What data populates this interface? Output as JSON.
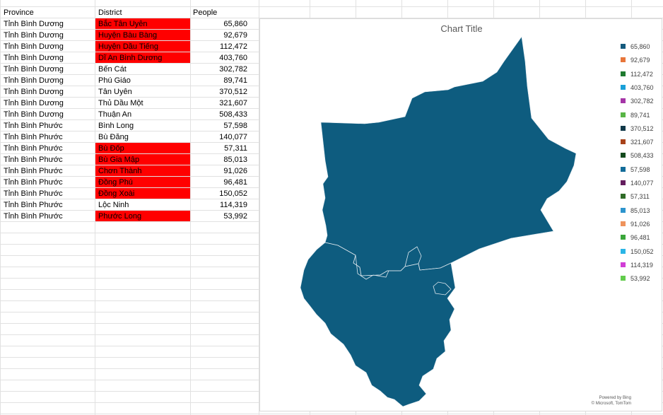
{
  "sheet": {
    "headers": {
      "province": "Province",
      "district": "District",
      "people": "People"
    },
    "rows": [
      {
        "province": "Tỉnh Bình Dương",
        "district": "Bắc Tân Uyên",
        "people": "65,860",
        "highlight": true
      },
      {
        "province": "Tỉnh Bình Dương",
        "district": "Huyện Bàu Bàng",
        "people": "92,679",
        "highlight": true
      },
      {
        "province": "Tỉnh Bình Dương",
        "district": "Huyện Dầu Tiếng",
        "people": "112,472",
        "highlight": true
      },
      {
        "province": "Tỉnh Bình Dương",
        "district": "Dĩ An Bình Dương",
        "people": "403,760",
        "highlight": true
      },
      {
        "province": "Tỉnh Bình Dương",
        "district": "Bến Cát",
        "people": "302,782",
        "highlight": false
      },
      {
        "province": "Tỉnh Bình Dương",
        "district": "Phú Giáo",
        "people": "89,741",
        "highlight": false
      },
      {
        "province": "Tỉnh Bình Dương",
        "district": "Tân Uyên",
        "people": "370,512",
        "highlight": false
      },
      {
        "province": "Tỉnh Bình Dương",
        "district": "Thủ Dầu Một",
        "people": "321,607",
        "highlight": false
      },
      {
        "province": "Tỉnh Bình Dương",
        "district": "Thuận An",
        "people": "508,433",
        "highlight": false
      },
      {
        "province": "Tỉnh Bình Phước",
        "district": "Bình Long",
        "people": "57,598",
        "highlight": false
      },
      {
        "province": "Tỉnh Bình Phước",
        "district": "Bù Đăng",
        "people": "140,077",
        "highlight": false
      },
      {
        "province": "Tỉnh Bình Phước",
        "district": "Bù Đốp",
        "people": "57,311",
        "highlight": true
      },
      {
        "province": "Tỉnh Bình Phước",
        "district": "Bù Gia Mập",
        "people": "85,013",
        "highlight": true
      },
      {
        "province": "Tỉnh Bình Phước",
        "district": "Chơn Thành",
        "people": "91,026",
        "highlight": true
      },
      {
        "province": "Tỉnh Bình Phước",
        "district": "Đồng Phú",
        "people": "96,481",
        "highlight": true
      },
      {
        "province": "Tỉnh Bình Phước",
        "district": "Đồng Xoài",
        "people": "150,052",
        "highlight": true
      },
      {
        "province": "Tỉnh Bình Phước",
        "district": "Lộc Ninh",
        "people": "114,319",
        "highlight": false
      },
      {
        "province": "Tỉnh Bình Phước",
        "district": "Phước Long",
        "people": "53,992",
        "highlight": true
      }
    ],
    "highlight_color": "#ff0000"
  },
  "chart": {
    "title": "Chart Title",
    "fill_color": "#0e5c7f",
    "border_color": "#dfe8ee",
    "legend": [
      {
        "label": "65,860",
        "color": "#155a7d"
      },
      {
        "label": "92,679",
        "color": "#e8763a"
      },
      {
        "label": "112,472",
        "color": "#1e7a2f"
      },
      {
        "label": "403,760",
        "color": "#1aa0d8"
      },
      {
        "label": "302,782",
        "color": "#a535a7"
      },
      {
        "label": "89,741",
        "color": "#58b545"
      },
      {
        "label": "370,512",
        "color": "#103848"
      },
      {
        "label": "321,607",
        "color": "#a8421a"
      },
      {
        "label": "508,433",
        "color": "#134a1d"
      },
      {
        "label": "57,598",
        "color": "#136c99"
      },
      {
        "label": "140,077",
        "color": "#641d5e"
      },
      {
        "label": "57,311",
        "color": "#2f6b27"
      },
      {
        "label": "85,013",
        "color": "#2d94cd"
      },
      {
        "label": "91,026",
        "color": "#ef935c"
      },
      {
        "label": "96,481",
        "color": "#3aa63a"
      },
      {
        "label": "150,052",
        "color": "#2ab5e6"
      },
      {
        "label": "114,319",
        "color": "#d13ed6"
      },
      {
        "label": "53,992",
        "color": "#62cc4c"
      }
    ],
    "credit_line1": "Powered by Bing",
    "credit_line2": "© Microsoft, TomTom"
  }
}
